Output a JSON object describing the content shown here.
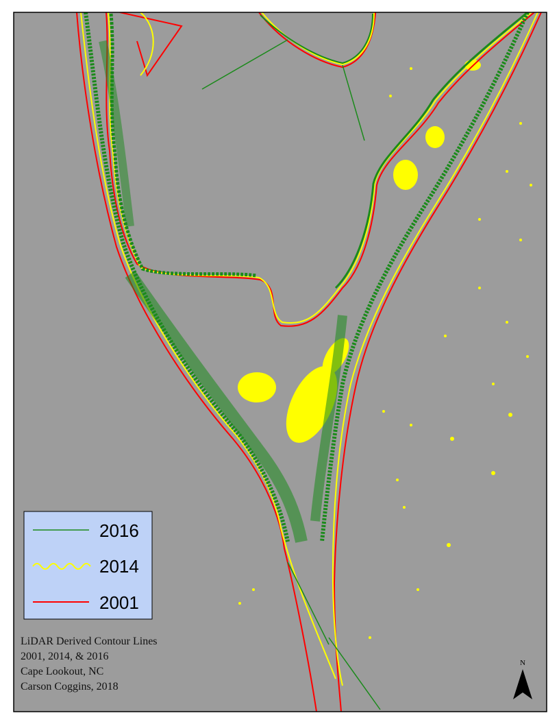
{
  "legend": {
    "items": [
      {
        "label": "2016",
        "color": "#1b8a1b"
      },
      {
        "label": "2014",
        "color": "#ffff00"
      },
      {
        "label": "2001",
        "color": "#ff0000"
      }
    ]
  },
  "caption": {
    "lines": [
      "LiDAR Derived Contour Lines",
      "2001, 2014, & 2016",
      "Cape Lookout, NC",
      "Carson Coggins, 2018"
    ]
  },
  "north_arrow": {
    "label": "N"
  }
}
